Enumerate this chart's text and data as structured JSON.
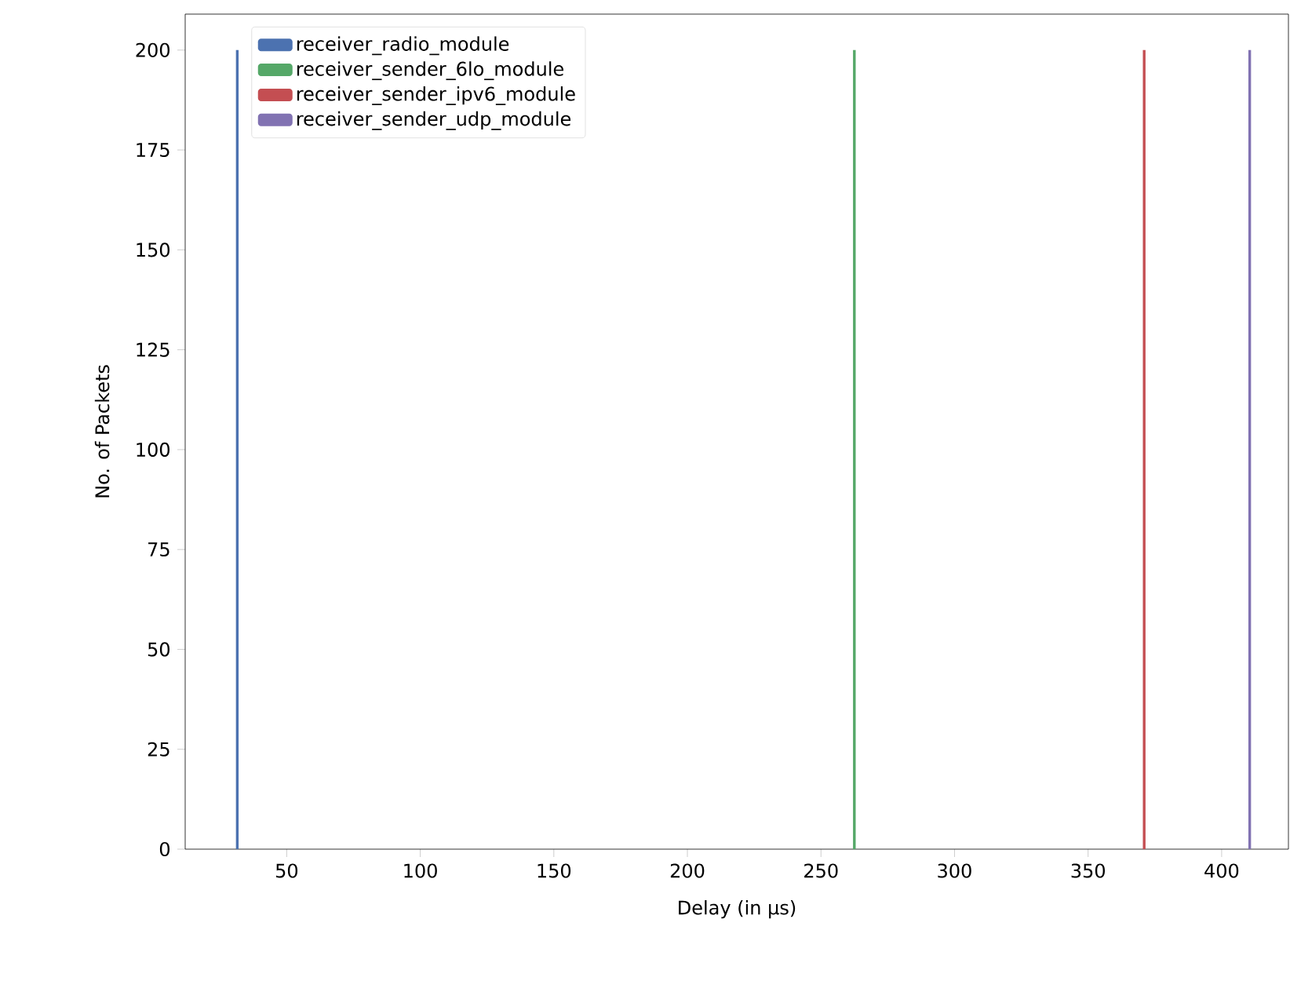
{
  "chart_data": {
    "type": "histogram",
    "xlabel": "Delay (in µs)",
    "ylabel": "No. of Packets",
    "bins": [
      31,
      32,
      262,
      263,
      370.5,
      371.5,
      410,
      411
    ],
    "series": [
      {
        "name": "receiver_radio_module",
        "color": "#4c72b0",
        "values": [
          200,
          null,
          null,
          null,
          null,
          null,
          null
        ]
      },
      {
        "name": "receiver_sender_6lo_module",
        "color": "#55a868",
        "values": [
          null,
          null,
          200,
          null,
          null,
          null,
          null
        ]
      },
      {
        "name": "receiver_sender_ipv6_module",
        "color": "#c44e52",
        "values": [
          null,
          null,
          null,
          null,
          200,
          null,
          null
        ]
      },
      {
        "name": "receiver_sender_udp_module",
        "color": "#8172b2",
        "values": [
          null,
          null,
          null,
          null,
          null,
          null,
          200
        ]
      }
    ],
    "xlim": [
      12,
      425
    ],
    "ylim": [
      0,
      209
    ],
    "xticks": [
      50,
      100,
      150,
      200,
      250,
      300,
      350,
      400
    ],
    "yticks": [
      0,
      25,
      50,
      75,
      100,
      125,
      150,
      175,
      200
    ],
    "grid": false,
    "legend": "top left"
  }
}
